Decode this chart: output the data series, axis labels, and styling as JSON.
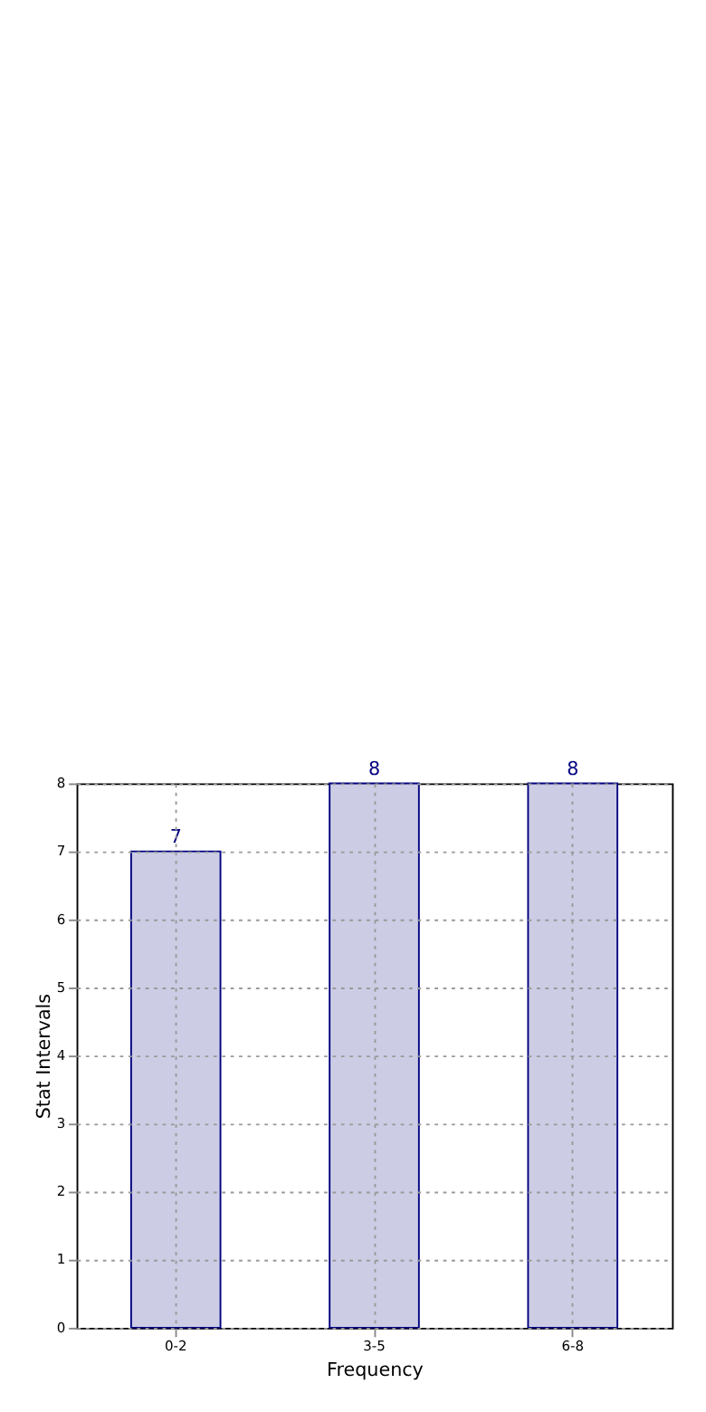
{
  "chart_data": {
    "type": "bar",
    "xlabel": "Frequency",
    "ylabel": "Stat Intervals",
    "categories": [
      "0-2",
      "3-5",
      "6-8"
    ],
    "values": [
      7,
      8,
      8
    ],
    "color": "#ccccE5",
    "ylim": [
      0,
      8
    ],
    "yticks": [
      0,
      1,
      2,
      3,
      4,
      5,
      6,
      7,
      8
    ],
    "grid": true,
    "data_labels": true
  }
}
